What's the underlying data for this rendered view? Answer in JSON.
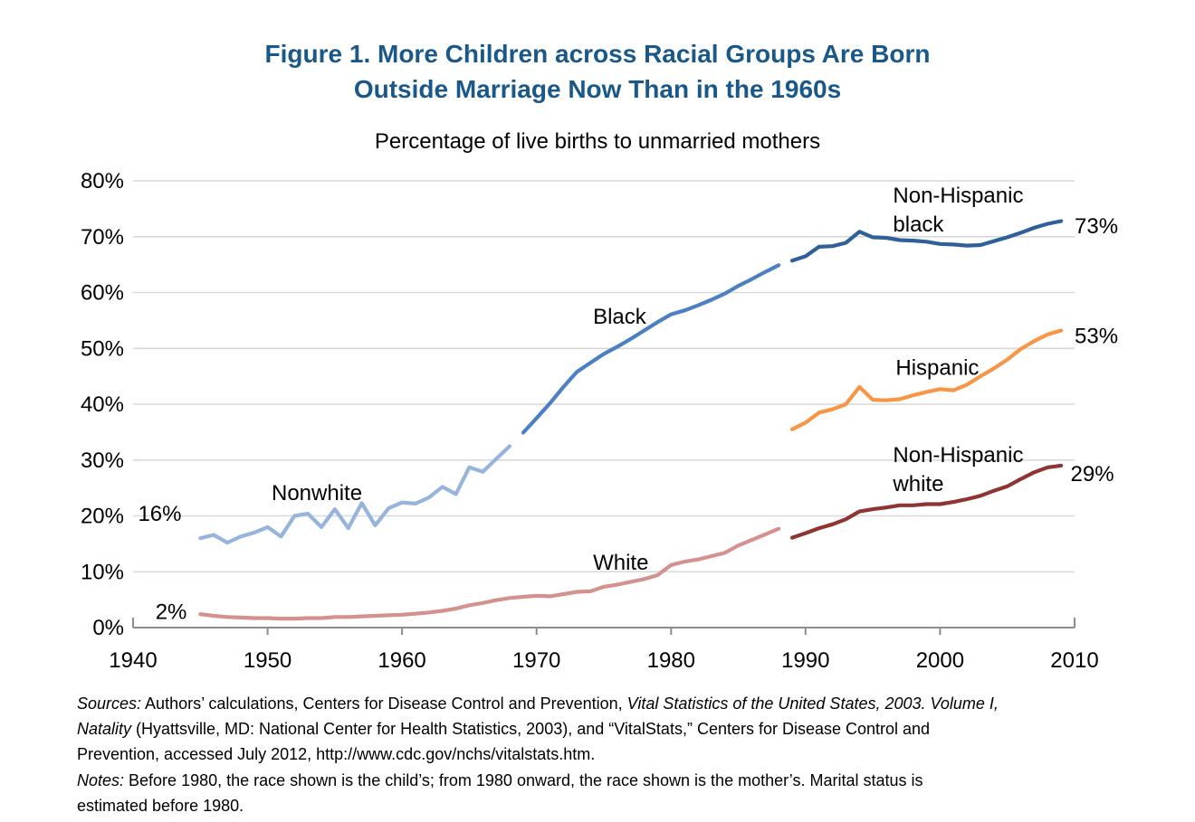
{
  "figure": {
    "title_line1": "Figure 1. More Children across Racial Groups Are Born",
    "title_line2": "Outside Marriage Now Than in the 1960s",
    "title_color": "#1A588A"
  },
  "colors": {
    "grid": "#D9D9D9",
    "axis": "#8C8C8C",
    "text": "#000000"
  },
  "chart_data": {
    "type": "line",
    "title": "Percentage of live births to unmarried mothers",
    "xlabel": "",
    "ylabel": "",
    "xlim": [
      1940,
      2010
    ],
    "ylim": [
      0,
      80
    ],
    "grid": "horizontal-only",
    "legend_position": "inline-labels",
    "x_ticks": [
      1940,
      1950,
      1960,
      1970,
      1980,
      1990,
      2000,
      2010
    ],
    "y_ticks": [
      {
        "value": 0,
        "label": "0%"
      },
      {
        "value": 10,
        "label": "10%"
      },
      {
        "value": 20,
        "label": "20%"
      },
      {
        "value": 30,
        "label": "30%"
      },
      {
        "value": 40,
        "label": "40%"
      },
      {
        "value": 50,
        "label": "50%"
      },
      {
        "value": 60,
        "label": "60%"
      },
      {
        "value": 70,
        "label": "70%"
      },
      {
        "value": 80,
        "label": "80%"
      }
    ],
    "series": [
      {
        "name": "Nonwhite",
        "color": "#97B5DC",
        "start_year": 1945,
        "values": [
          16.0,
          16.6,
          15.2,
          16.3,
          17.0,
          18.0,
          16.3,
          20.0,
          20.4,
          18.0,
          21.2,
          17.8,
          22.3,
          18.3,
          21.4,
          22.4,
          22.2,
          23.3,
          25.2,
          23.9,
          28.7,
          27.9,
          30.2,
          32.5
        ]
      },
      {
        "name": "White",
        "color": "#D4928F",
        "start_year": 1945,
        "values": [
          2.4,
          2.1,
          1.9,
          1.8,
          1.7,
          1.7,
          1.6,
          1.6,
          1.7,
          1.7,
          1.9,
          1.9,
          2.0,
          2.1,
          2.2,
          2.3,
          2.5,
          2.7,
          3.0,
          3.4,
          4.0,
          4.4,
          4.9,
          5.3,
          5.5,
          5.7,
          5.6,
          6.0,
          6.4,
          6.5,
          7.3,
          7.7,
          8.2,
          8.7,
          9.4,
          11.2,
          11.8,
          12.2,
          12.8,
          13.4,
          14.7,
          15.7,
          16.7,
          17.7
        ]
      },
      {
        "name": "Black",
        "color": "#4C80C2",
        "start_year": 1969,
        "values": [
          34.9,
          37.5,
          40.2,
          43.1,
          45.8,
          47.4,
          49.0,
          50.3,
          51.7,
          53.2,
          54.7,
          56.1,
          56.8,
          57.7,
          58.7,
          59.8,
          61.2,
          62.4,
          63.7,
          64.9
        ]
      },
      {
        "name": "Non-Hispanic black",
        "color": "#30609A",
        "start_year": 1989,
        "values": [
          65.7,
          66.5,
          68.2,
          68.3,
          68.9,
          70.9,
          69.9,
          69.8,
          69.4,
          69.3,
          69.1,
          68.7,
          68.6,
          68.4,
          68.5,
          69.2,
          69.9,
          70.7,
          71.6,
          72.3,
          72.8
        ]
      },
      {
        "name": "Hispanic",
        "color": "#F79646",
        "start_year": 1989,
        "values": [
          35.5,
          36.7,
          38.5,
          39.1,
          40.0,
          43.1,
          40.8,
          40.7,
          40.9,
          41.6,
          42.2,
          42.7,
          42.5,
          43.5,
          45.0,
          46.4,
          48.0,
          49.9,
          51.3,
          52.5,
          53.2
        ]
      },
      {
        "name": "Non-Hispanic white",
        "color": "#8E3533",
        "start_year": 1989,
        "values": [
          16.1,
          16.9,
          17.8,
          18.5,
          19.4,
          20.8,
          21.2,
          21.5,
          21.9,
          21.9,
          22.1,
          22.1,
          22.5,
          23.0,
          23.6,
          24.5,
          25.3,
          26.6,
          27.8,
          28.7,
          29.0
        ]
      }
    ],
    "annotations": [
      {
        "lines": [
          "16%"
        ],
        "year": 1943.6,
        "value": 19.1,
        "anchor": "end"
      },
      {
        "lines": [
          "2%"
        ],
        "year": 1944.0,
        "value": 1.5,
        "anchor": "end"
      },
      {
        "lines": [
          "Nonwhite"
        ],
        "year": 1950.3,
        "value": 22.8,
        "anchor": "start"
      },
      {
        "lines": [
          "Black"
        ],
        "year": 1974.2,
        "value": 54.4,
        "anchor": "start"
      },
      {
        "lines": [
          "White"
        ],
        "year": 1974.2,
        "value": 10.4,
        "anchor": "start"
      },
      {
        "lines": [
          "Non-Hispanic",
          "black"
        ],
        "year": 1996.5,
        "value": 76.1,
        "anchor": "start"
      },
      {
        "lines": [
          "Hispanic"
        ],
        "year": 1996.7,
        "value": 45.3,
        "anchor": "start"
      },
      {
        "lines": [
          "Non-Hispanic",
          "white"
        ],
        "year": 1996.5,
        "value": 29.6,
        "anchor": "start"
      },
      {
        "lines": [
          "73%"
        ],
        "year": 2010.0,
        "value": 70.6,
        "anchor": "start"
      },
      {
        "lines": [
          "53%"
        ],
        "year": 2010.0,
        "value": 50.9,
        "anchor": "start"
      },
      {
        "lines": [
          "29%"
        ],
        "year": 2009.7,
        "value": 26.2,
        "anchor": "start"
      }
    ]
  },
  "footer": {
    "lines": [
      [
        {
          "text": "Sources:",
          "italic": true
        },
        {
          "text": " Authors’ calculations, Centers for Disease Control and Prevention, ",
          "italic": false
        },
        {
          "text": "Vital Statistics of the United States, 2003. Volume I,",
          "italic": true
        }
      ],
      [
        {
          "text": "Natality",
          "italic": true
        },
        {
          "text": " (Hyattsville, MD: National Center for Health Statistics, 2003), and “VitalStats,” Centers for Disease Control and",
          "italic": false
        }
      ],
      [
        {
          "text": "Prevention, accessed July 2012, http://www.cdc.gov/nchs/vitalstats.htm.",
          "italic": false
        }
      ],
      [
        {
          "text": "Notes:",
          "italic": true
        },
        {
          "text": " Before 1980, the race shown is the child’s; from 1980 onward, the race shown is the mother’s. Marital status is",
          "italic": false
        }
      ],
      [
        {
          "text": "estimated before 1980.",
          "italic": false
        }
      ]
    ]
  }
}
